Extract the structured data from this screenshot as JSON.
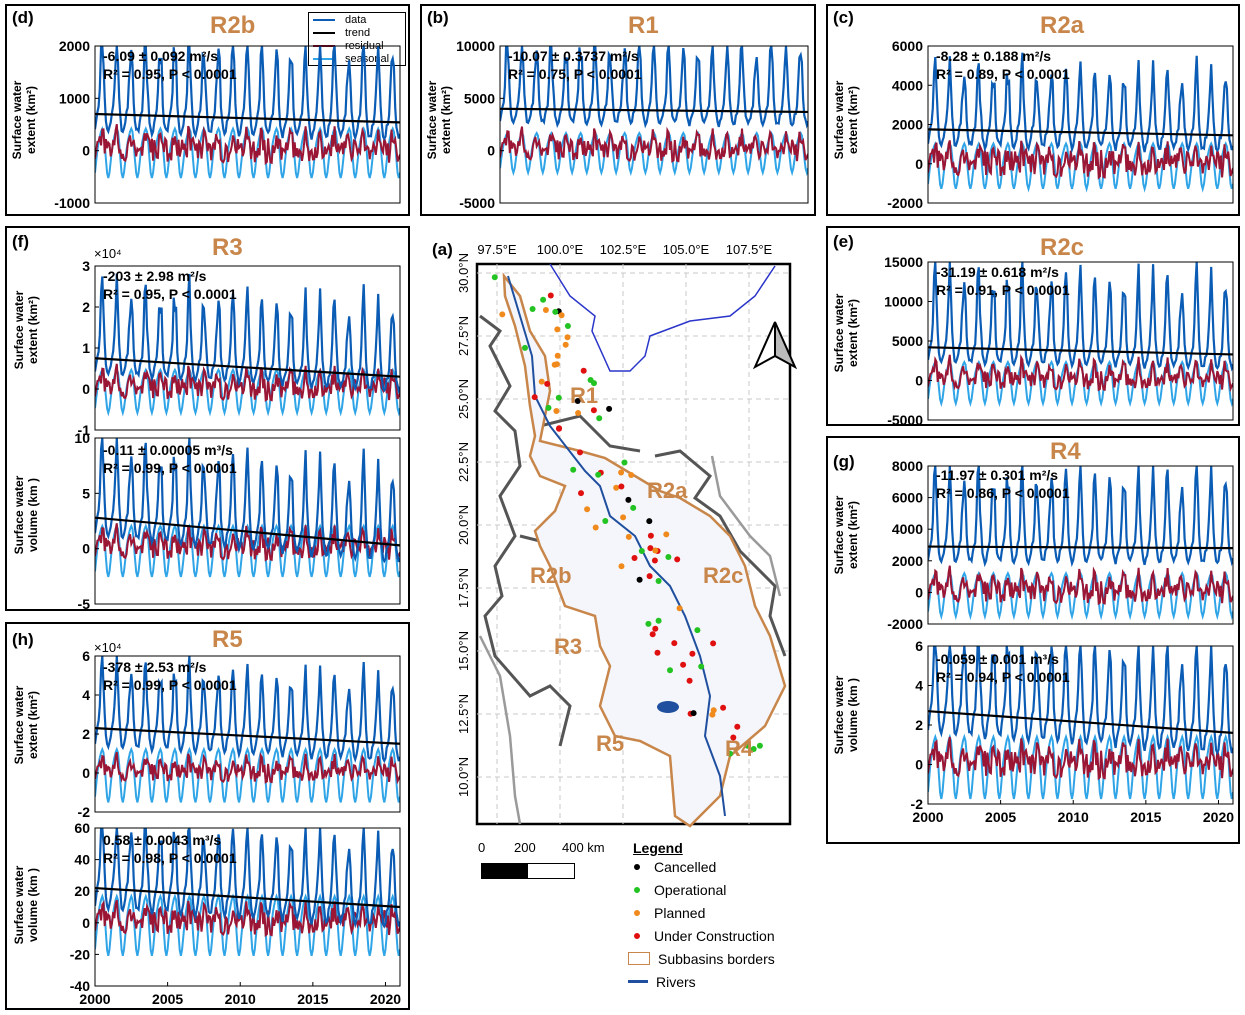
{
  "colors": {
    "data": "#0b5cb5",
    "trend": "#000000",
    "residual": "#9b1535",
    "seasonal": "#2fa4e7",
    "border": "#c8864a",
    "river": "#1f4f9e"
  },
  "legend": {
    "items": [
      "data",
      "trend",
      "residual",
      "seasonal"
    ]
  },
  "axis_labels": {
    "extent": [
      "Surface water",
      "extent (km²)"
    ],
    "volume": [
      "Surface water",
      "volume (km )"
    ]
  },
  "panels": {
    "d": {
      "label": "(d)",
      "title": "R2b",
      "stat1": "-6.09 ± 0.092 m²/s",
      "stat2": "R² = 0.95, P < 0.0001"
    },
    "b": {
      "label": "(b)",
      "title": "R1",
      "stat1": "-10.07 ± 0.3737 m²/s",
      "stat2": "R² = 0.75, P < 0.0001"
    },
    "c": {
      "label": "(c)",
      "title": "R2a",
      "stat1": "-8.28 ± 0.188 m²/s",
      "stat2": "R² = 0.89, P < 0.0001"
    },
    "f": {
      "label": "(f)",
      "title": "R3",
      "exp": "×10⁴",
      "stat1": "-203 ± 2.98 m²/s",
      "stat2": "R² = 0.95, P < 0.0001",
      "stat3": "-0.11 ± 0.00005 m³/s",
      "stat4": "R² = 0.99, P < 0.0001"
    },
    "e": {
      "label": "(e)",
      "title": "R2c",
      "stat1": "-31.19 ± 0.618 m²/s",
      "stat2": "R² = 0.91, P < 0.0001"
    },
    "g": {
      "label": "(g)",
      "title": "R4",
      "stat1": "-11.97 ± 0.301 m²/s",
      "stat2": "R² = 0.86, P < 0.0001",
      "stat3": "-0.059 ± 0.001 m³/s",
      "stat4": "R² = 0.94, P < 0.0001"
    },
    "h": {
      "label": "(h)",
      "title": "R5",
      "exp": "×10⁴",
      "stat1": "-378 ± 2.53 m²/s",
      "stat2": "R² = 0.99, P < 0.0001",
      "stat3": "0.58 ± 0.0043 m³/s",
      "stat4": "R² = 0.98, P < 0.0001"
    },
    "a": {
      "label": "(a)"
    }
  },
  "map": {
    "lon_labels": [
      "97.5°E",
      "100.0°E",
      "102.5°E",
      "105.0°E",
      "107.5°E"
    ],
    "lat_labels": [
      "30.0°N",
      "27.5°N",
      "25.0°N",
      "22.5°N",
      "20.0°N",
      "17.5°N",
      "15.0°N",
      "12.5°N",
      "10.0°N"
    ],
    "regions": [
      "R1",
      "R2a",
      "R2b",
      "R2c",
      "R3",
      "R4",
      "R5"
    ],
    "scale": {
      "ticks": [
        "0",
        "200",
        "400 km"
      ]
    },
    "legend_title": "Legend",
    "legend": [
      {
        "label": "Cancelled",
        "color": "#000000"
      },
      {
        "label": "Operational",
        "color": "#22c322"
      },
      {
        "label": "Planned",
        "color": "#f08a1c"
      },
      {
        "label": "Under Construction",
        "color": "#e01010"
      },
      {
        "label": "Subbasins borders",
        "color": "#c8864a"
      },
      {
        "label": "Rivers",
        "color": "#1f4f9e"
      }
    ]
  },
  "chart_data": [
    {
      "id": "d",
      "type": "line",
      "x_range": [
        2000,
        2021
      ],
      "ylim": [
        -1000,
        2000
      ],
      "yticks": [
        -1000,
        0,
        1000,
        2000
      ],
      "trend": [
        700,
        540
      ],
      "series": [
        {
          "name": "data",
          "peak": 1300,
          "base": 300
        },
        {
          "name": "trend"
        },
        {
          "name": "residual",
          "amp": 300
        },
        {
          "name": "seasonal",
          "amp": 450
        }
      ]
    },
    {
      "id": "b",
      "type": "line",
      "x_range": [
        2000,
        2021
      ],
      "ylim": [
        -5000,
        10000
      ],
      "yticks": [
        -5000,
        0,
        5000,
        10000
      ],
      "trend": [
        4000,
        3700
      ],
      "series": [
        {
          "name": "data",
          "peak": 6000,
          "base": 1500
        },
        {
          "name": "trend"
        },
        {
          "name": "residual",
          "amp": 1300
        },
        {
          "name": "seasonal",
          "amp": 1800
        }
      ]
    },
    {
      "id": "c",
      "type": "line",
      "x_range": [
        2000,
        2021
      ],
      "ylim": [
        -2000,
        6000
      ],
      "yticks": [
        -2000,
        0,
        2000,
        4000,
        6000
      ],
      "trend": [
        1750,
        1450
      ],
      "series": [
        {
          "name": "data",
          "peak": 2800,
          "base": 500
        },
        {
          "name": "trend"
        },
        {
          "name": "residual",
          "amp": 900
        },
        {
          "name": "seasonal",
          "amp": 1100
        }
      ]
    },
    {
      "id": "e",
      "type": "line",
      "x_range": [
        2000,
        2021
      ],
      "ylim": [
        -5000,
        15000
      ],
      "yticks": [
        -5000,
        0,
        5000,
        10000,
        15000
      ],
      "trend": [
        4200,
        3300
      ],
      "series": [
        {
          "name": "data",
          "peak": 9000,
          "base": 1500
        },
        {
          "name": "trend"
        },
        {
          "name": "residual",
          "amp": 1500
        },
        {
          "name": "seasonal",
          "amp": 2500
        }
      ]
    },
    {
      "id": "f1",
      "type": "line",
      "x_range": [
        2000,
        2021
      ],
      "ylim": [
        -1,
        3
      ],
      "yticks": [
        -1,
        0,
        1,
        2,
        3
      ],
      "y_multiplier": "×10⁴",
      "trend": [
        0.75,
        0.3
      ],
      "series": [
        {
          "name": "data",
          "peak": 1.6,
          "base": 0.3
        },
        {
          "name": "trend"
        },
        {
          "name": "residual",
          "amp": 0.35
        },
        {
          "name": "seasonal",
          "amp": 0.5
        }
      ]
    },
    {
      "id": "f2",
      "type": "line",
      "x_range": [
        2000,
        2021
      ],
      "ylim": [
        -5,
        10
      ],
      "yticks": [
        -5,
        0,
        5,
        10
      ],
      "trend": [
        2.8,
        0.3
      ],
      "series": [
        {
          "name": "data",
          "peak": 6,
          "base": 1
        },
        {
          "name": "trend"
        },
        {
          "name": "residual",
          "amp": 1.3
        },
        {
          "name": "seasonal",
          "amp": 2.2
        }
      ]
    },
    {
      "id": "g1",
      "type": "line",
      "x_range": [
        2000,
        2021
      ],
      "ylim": [
        -2000,
        8000
      ],
      "yticks": [
        -2000,
        0,
        2000,
        4000,
        6000,
        8000
      ],
      "trend": [
        2900,
        2800
      ],
      "series": [
        {
          "name": "data",
          "peak": 4500,
          "base": 1500
        },
        {
          "name": "trend"
        },
        {
          "name": "residual",
          "amp": 900
        },
        {
          "name": "seasonal",
          "amp": 1300
        }
      ]
    },
    {
      "id": "g2",
      "type": "line",
      "x_range": [
        2000,
        2021
      ],
      "ylim": [
        -2,
        6
      ],
      "yticks": [
        -2,
        0,
        2,
        4,
        6
      ],
      "xticks": [
        2000,
        2005,
        2010,
        2015,
        2020
      ],
      "trend": [
        2.7,
        1.6
      ],
      "series": [
        {
          "name": "data",
          "peak": 3.5,
          "base": 1.2
        },
        {
          "name": "trend"
        },
        {
          "name": "residual",
          "amp": 0.9
        },
        {
          "name": "seasonal",
          "amp": 1.5
        }
      ]
    },
    {
      "id": "h1",
      "type": "line",
      "x_range": [
        2000,
        2021
      ],
      "ylim": [
        -2,
        6
      ],
      "yticks": [
        -2,
        0,
        2,
        4,
        6
      ],
      "y_multiplier": "×10⁴",
      "trend": [
        2.3,
        1.5
      ],
      "series": [
        {
          "name": "data",
          "peak": 2.8,
          "base": 0.8
        },
        {
          "name": "trend"
        },
        {
          "name": "residual",
          "amp": 0.6
        },
        {
          "name": "seasonal",
          "amp": 1.3
        }
      ]
    },
    {
      "id": "h2",
      "type": "line",
      "x_range": [
        2000,
        2021
      ],
      "ylim": [
        -40,
        60
      ],
      "yticks": [
        -40,
        -20,
        0,
        20,
        40,
        60
      ],
      "xticks": [
        2000,
        2005,
        2010,
        2015,
        2020
      ],
      "trend": [
        22,
        10
      ],
      "series": [
        {
          "name": "data",
          "peak": 35,
          "base": 8
        },
        {
          "name": "trend"
        },
        {
          "name": "residual",
          "amp": 10
        },
        {
          "name": "seasonal",
          "amp": 18
        }
      ]
    }
  ]
}
